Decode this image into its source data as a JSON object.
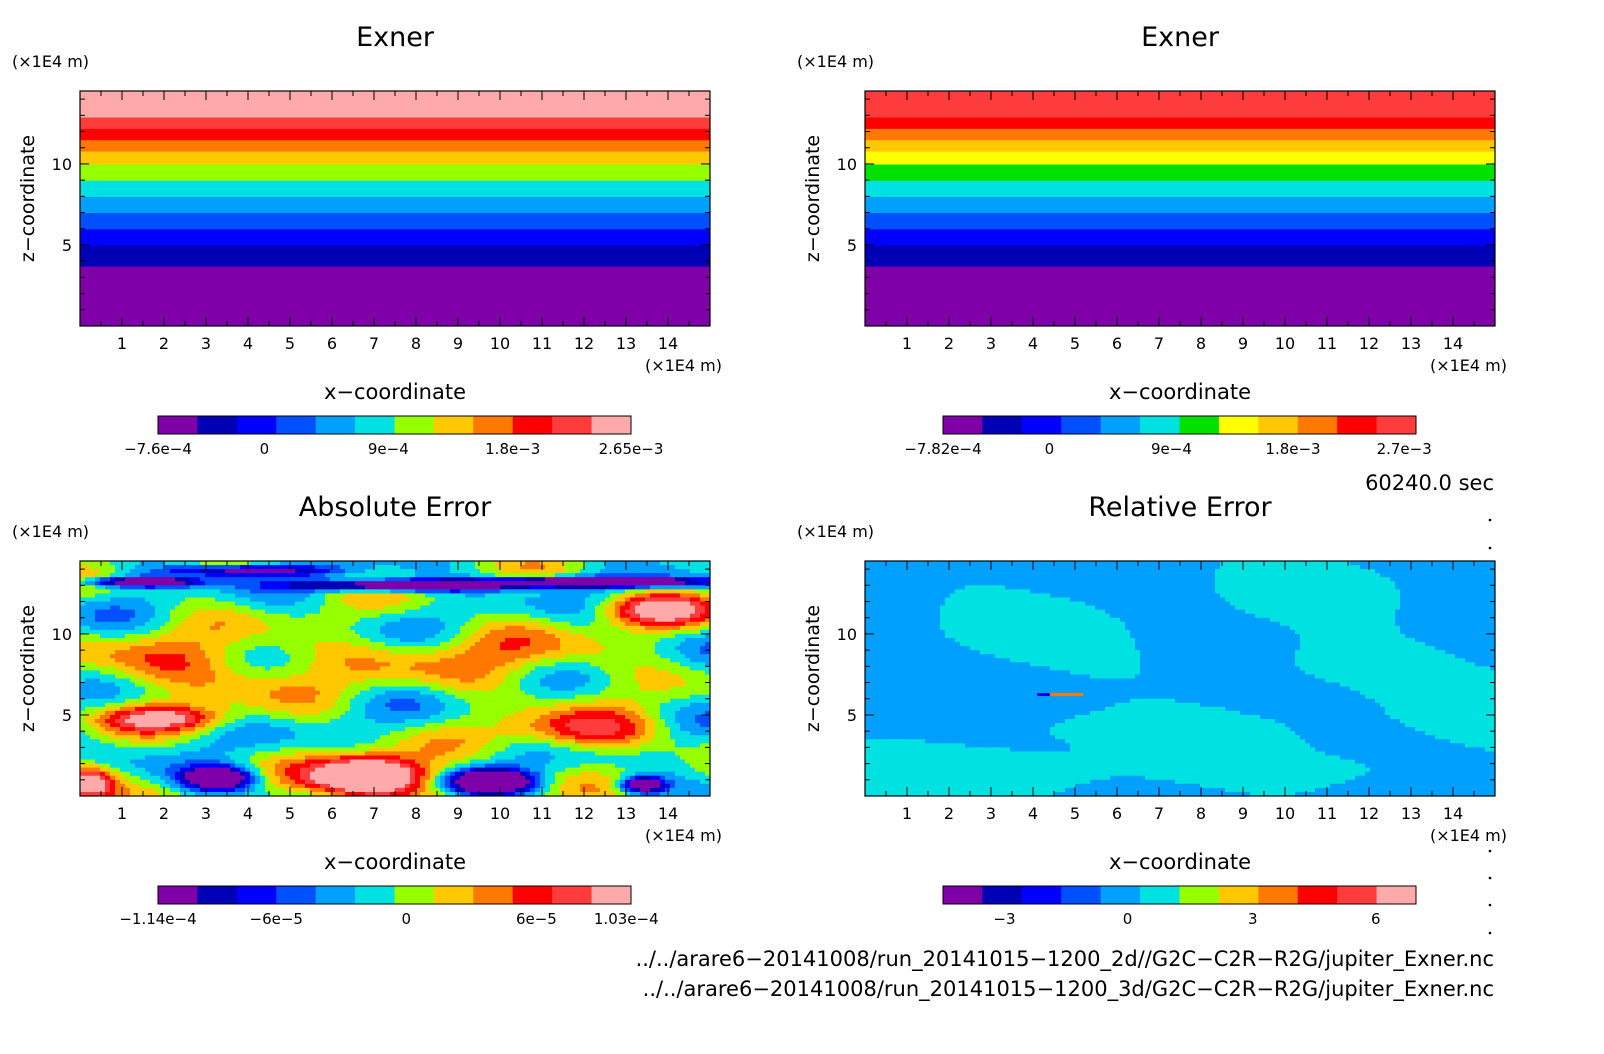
{
  "chart_data": [
    {
      "type": "heatmap",
      "title": "Exner",
      "xlabel": "x−coordinate",
      "ylabel": "z−coordinate",
      "x_unit": "(×1E4 m)",
      "y_unit": "(×1E4 m)",
      "xlim": [
        0,
        15
      ],
      "ylim": [
        0,
        14.5
      ],
      "xticks": [
        "1",
        "2",
        "3",
        "4",
        "5",
        "6",
        "7",
        "8",
        "9",
        "10",
        "11",
        "12",
        "13",
        "14"
      ],
      "yticks": [
        "5",
        "10"
      ],
      "field": "layered",
      "band_colors": [
        "#7f00a8",
        "#0000b4",
        "#0000ff",
        "#0050ff",
        "#00a0ff",
        "#00e1e1",
        "#96ff00",
        "#ffc800",
        "#ff7800",
        "#ff0000",
        "#ff3c3c",
        "#ffaaaa"
      ],
      "band_limits_z": [
        0,
        3.7,
        5.0,
        6.0,
        7.0,
        8.0,
        9.0,
        10.0,
        10.8,
        11.5,
        12.2,
        12.9,
        14.5
      ],
      "colorbar": {
        "colors": [
          "#7f00a8",
          "#0000b4",
          "#0000ff",
          "#0050ff",
          "#00a0ff",
          "#00e1e1",
          "#96ff00",
          "#ffc800",
          "#ff7800",
          "#ff0000",
          "#ff3c3c",
          "#ffaaaa"
        ],
        "labels": [
          "−7.6e−4",
          "0",
          "9e−4",
          "1.8e−3",
          "2.65e−3"
        ],
        "positions": [
          0.0,
          0.225,
          0.487,
          0.75,
          1.0
        ]
      }
    },
    {
      "type": "heatmap",
      "title": "Exner",
      "xlabel": "x−coordinate",
      "ylabel": "z−coordinate",
      "x_unit": "(×1E4 m)",
      "y_unit": "(×1E4 m)",
      "xlim": [
        0,
        15
      ],
      "ylim": [
        0,
        14.5
      ],
      "xticks": [
        "1",
        "2",
        "3",
        "4",
        "5",
        "6",
        "7",
        "8",
        "9",
        "10",
        "11",
        "12",
        "13",
        "14"
      ],
      "yticks": [
        "5",
        "10"
      ],
      "field": "layered",
      "band_colors": [
        "#7f00a8",
        "#0000b4",
        "#0000ff",
        "#0050ff",
        "#00a0ff",
        "#00e1e1",
        "#00e100",
        "#ffff00",
        "#ffc800",
        "#ff7800",
        "#ff0000",
        "#ff3c3c"
      ],
      "band_limits_z": [
        0,
        3.7,
        5.0,
        6.0,
        7.0,
        8.0,
        9.0,
        10.0,
        10.8,
        11.5,
        12.2,
        12.9,
        14.5
      ],
      "colorbar": {
        "colors": [
          "#7f00a8",
          "#0000b4",
          "#0000ff",
          "#0050ff",
          "#00a0ff",
          "#00e1e1",
          "#00e100",
          "#ffff00",
          "#ffc800",
          "#ff7800",
          "#ff0000",
          "#ff3c3c"
        ],
        "labels": [
          "−7.82e−4",
          "0",
          "9e−4",
          "1.8e−3",
          "2.7e−3"
        ],
        "positions": [
          0.0,
          0.225,
          0.483,
          0.74,
          0.975
        ]
      }
    },
    {
      "type": "heatmap",
      "title": "Absolute Error",
      "xlabel": "x−coordinate",
      "ylabel": "z−coordinate",
      "x_unit": "(×1E4 m)",
      "y_unit": "(×1E4 m)",
      "xlim": [
        0,
        15
      ],
      "ylim": [
        0,
        14.5
      ],
      "xticks": [
        "1",
        "2",
        "3",
        "4",
        "5",
        "6",
        "7",
        "8",
        "9",
        "10",
        "11",
        "12",
        "13",
        "14"
      ],
      "yticks": [
        "5",
        "10"
      ],
      "field": "abs_error",
      "value_range": [
        -0.000114,
        0.000103
      ],
      "colorbar": {
        "colors": [
          "#7f00a8",
          "#0000b4",
          "#0000ff",
          "#0050ff",
          "#00a0ff",
          "#00e1e1",
          "#96ff00",
          "#ffc800",
          "#ff7800",
          "#ff0000",
          "#ff3c3c",
          "#ffaaaa"
        ],
        "labels": [
          "−1.14e−4",
          "−6e−5",
          "0",
          "6e−5",
          "1.03e−4"
        ],
        "positions": [
          0.0,
          0.25,
          0.525,
          0.8,
          0.99
        ]
      }
    },
    {
      "type": "heatmap",
      "title": "Relative Error",
      "xlabel": "x−coordinate",
      "ylabel": "z−coordinate",
      "x_unit": "(×1E4 m)",
      "y_unit": "(×1E4 m)",
      "xlim": [
        0,
        15
      ],
      "ylim": [
        0,
        14.5
      ],
      "xticks": [
        "1",
        "2",
        "3",
        "4",
        "5",
        "6",
        "7",
        "8",
        "9",
        "10",
        "11",
        "12",
        "13",
        "14"
      ],
      "yticks": [
        "5",
        "10"
      ],
      "field": "rel_error",
      "colorbar": {
        "colors": [
          "#7f00a8",
          "#0000b4",
          "#0000ff",
          "#0050ff",
          "#00a0ff",
          "#00e1e1",
          "#96ff00",
          "#ffc800",
          "#ff7800",
          "#ff0000",
          "#ff3c3c",
          "#ffaaaa"
        ],
        "labels": [
          "−3",
          "0",
          "3",
          "6"
        ],
        "positions": [
          0.13,
          0.39,
          0.655,
          0.915
        ]
      }
    }
  ],
  "time_label": "60240.0 sec",
  "file_paths": [
    "../../arare6−20141008/run_20141015−1200_2d//G2C−C2R−R2G/jupiter_Exner.nc",
    "../../arare6−20141008/run_20141015−1200_3d/G2C−C2R−R2G/jupiter_Exner.nc"
  ]
}
